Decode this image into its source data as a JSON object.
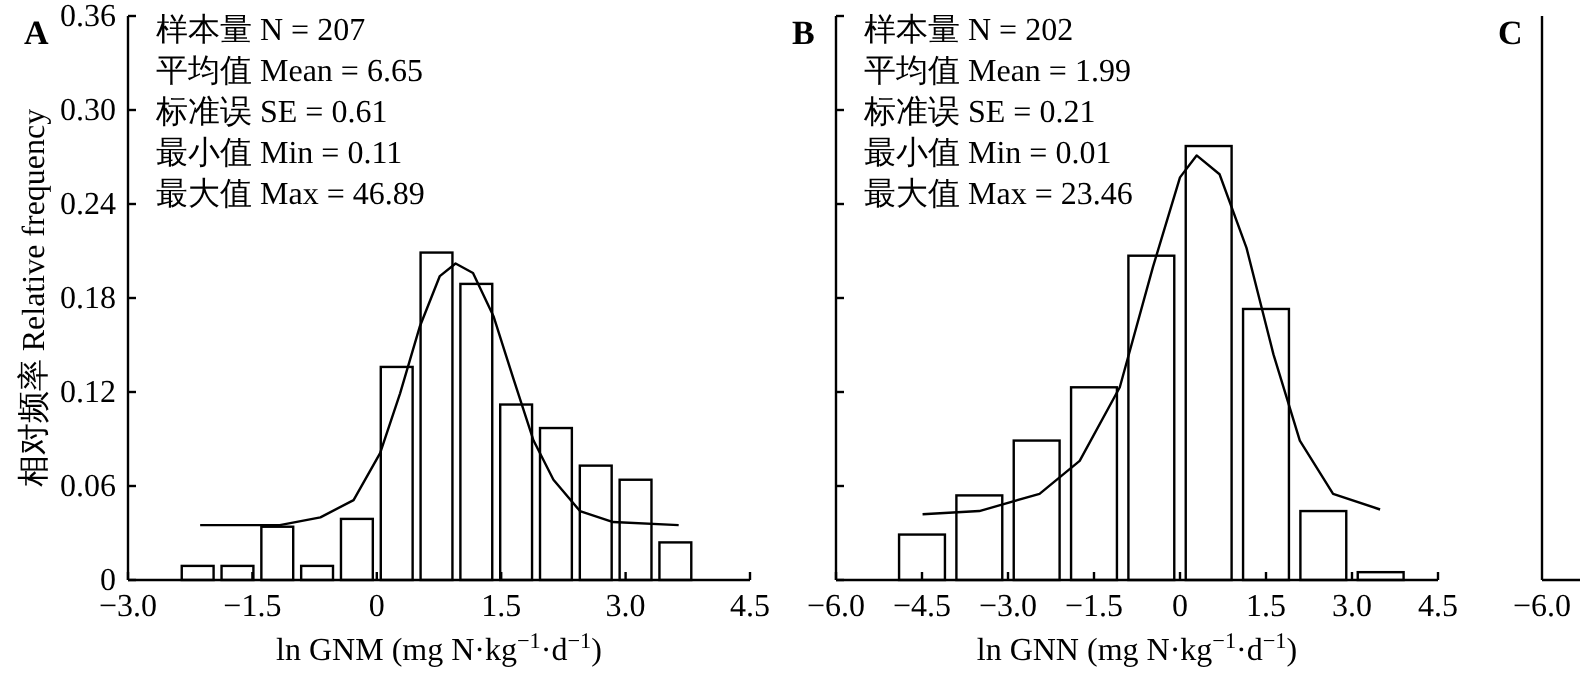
{
  "chart_data": [
    {
      "type": "histogram",
      "title": "A",
      "xlabel": "ln GNM (mg N·kg$^{−1}$·d$^{−1}$)",
      "ylabel": "相对频率 Relative frequency",
      "bins": [
        -2.4,
        -1.92,
        -1.44,
        -0.96,
        -0.48,
        0.0,
        0.48,
        0.96,
        1.44,
        1.92,
        2.4,
        2.88,
        3.36,
        3.84
      ],
      "values": [
        0.009,
        0.009,
        0.034,
        0.009,
        0.039,
        0.136,
        0.209,
        0.189,
        0.112,
        0.097,
        0.073,
        0.064,
        0.024
      ],
      "color": "#ffffff",
      "series": [
        {
          "type": "line",
          "color": "#000000",
          "x": [
            -2.13,
            -1.17,
            -0.68,
            -0.28,
            0.04,
            0.28,
            0.52,
            0.76,
            0.95,
            1.16,
            1.41,
            1.65,
            1.89,
            2.13,
            2.45,
            2.85,
            3.64
          ],
          "values": [
            0.035,
            0.035,
            0.04,
            0.051,
            0.081,
            0.119,
            0.162,
            0.194,
            0.202,
            0.196,
            0.168,
            0.128,
            0.089,
            0.064,
            0.044,
            0.037,
            0.035
          ]
        }
      ],
      "xlim": [
        -3.0,
        4.5
      ],
      "xticks": [
        {
          "value": -3.0,
          "label": "−3.0"
        },
        {
          "value": -1.5,
          "label": "−1.5"
        },
        0,
        1.5,
        {
          "value": 3.0,
          "label": "3.0"
        },
        4.5
      ],
      "ylim": [
        0,
        0.36
      ],
      "yticks": [
        0,
        0.06,
        0.12,
        0.18,
        0.24,
        {
          "value": 0.3,
          "label": "0.30"
        },
        0.36
      ],
      "annotations": [
        "样本量 N = 207",
        "平均值 Mean = 6.65",
        "标准误 SE = 0.61",
        "最小值 Min = 0.11",
        "最大值 Max = 46.89"
      ]
    },
    {
      "type": "histogram",
      "title": "B",
      "xlabel": "ln GNN (mg N·kg$^{−1}$·d$^{−1}$)",
      "bins": [
        -5.0,
        -4.0,
        -3.0,
        -2.0,
        -1.0,
        0.0,
        1.0,
        2.0,
        3.0,
        4.0
      ],
      "values": [
        0.029,
        0.054,
        0.089,
        0.123,
        0.207,
        0.277,
        0.173,
        0.044,
        0.005
      ],
      "color": "#ffffff",
      "series": [
        {
          "type": "line",
          "color": "#000000",
          "x": [
            -4.49,
            -3.5,
            -2.45,
            -1.75,
            -1.05,
            -0.47,
            0.0,
            0.29,
            0.69,
            1.16,
            1.63,
            2.09,
            2.67,
            3.49
          ],
          "values": [
            0.042,
            0.044,
            0.055,
            0.076,
            0.123,
            0.2,
            0.257,
            0.271,
            0.259,
            0.212,
            0.144,
            0.089,
            0.055,
            0.045
          ]
        }
      ],
      "xlim": [
        -6.0,
        4.5
      ],
      "xticks": [
        {
          "value": -6.0,
          "label": "−6.0"
        },
        {
          "value": -4.5,
          "label": "−4.5"
        },
        {
          "value": -3.0,
          "label": "−3.0"
        },
        {
          "value": -1.5,
          "label": "−1.5"
        },
        0,
        1.5,
        {
          "value": 3.0,
          "label": "3.0"
        },
        4.5
      ],
      "ylim": [
        0,
        0.36
      ],
      "yticks": [
        0,
        0.06,
        0.12,
        0.18,
        0.24,
        0.3,
        0.36
      ],
      "tick_labels": "x",
      "annotations": [
        "样本量 N = 202",
        "平均值 Mean = 1.99",
        "标准误 SE = 0.21",
        "最小值 Min = 0.01",
        "最大值 Max = 23.46"
      ]
    },
    {
      "type": "other",
      "title": "C",
      "annotations": [
        "−6.0"
      ]
    }
  ]
}
